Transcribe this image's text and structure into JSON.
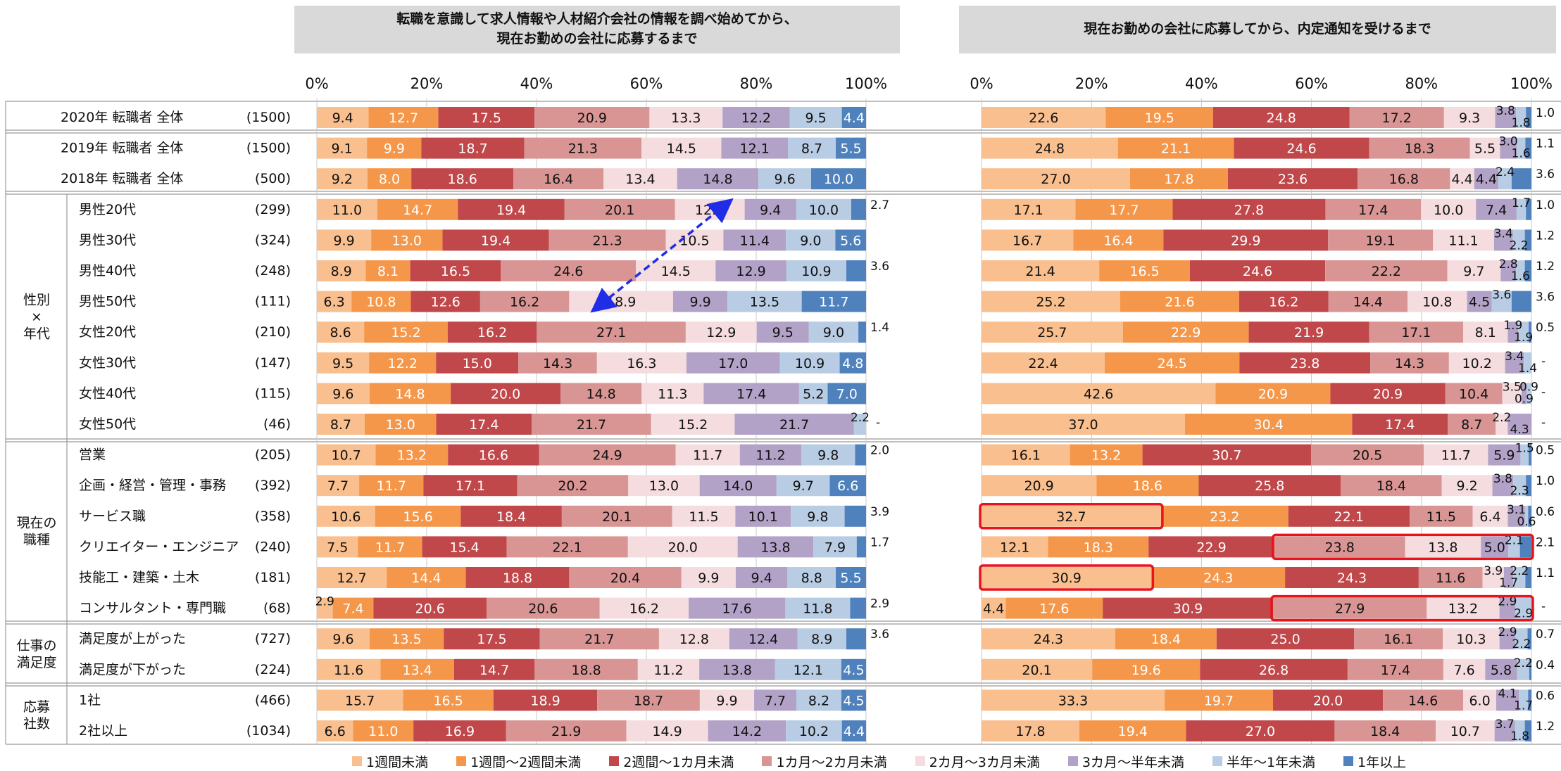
{
  "headers": {
    "left": "転職を意識して求人情報や人材紹介会社の情報を調べ始めてから、\n現在お勤めの会社に応募するまで",
    "right": "現在お勤めの会社に応募してから、内定通知を受けるまで"
  },
  "legend": [
    {
      "label": "1週間未満",
      "color": "#f9bf8f"
    },
    {
      "label": "1週間～2週間未満",
      "color": "#f5974a"
    },
    {
      "label": "2週間～1カ月未満",
      "color": "#c0474a"
    },
    {
      "label": "1カ月～2カ月未満",
      "color": "#d99594"
    },
    {
      "label": "2カ月～3カ月未満",
      "color": "#f5dcdf"
    },
    {
      "label": "3カ月～半年未満",
      "color": "#b2a2c7"
    },
    {
      "label": "半年～1年未満",
      "color": "#b8cce4"
    },
    {
      "label": "1年以上",
      "color": "#4f81bd"
    }
  ],
  "chart_data": [
    {
      "type": "bar",
      "stacked": "100%",
      "orientation": "horizontal",
      "title": "転職を意識して求人情報や人材紹介会社の情報を調べ始めてから、現在お勤めの会社に応募するまで",
      "xlim": [
        0,
        100
      ],
      "x_ticks": [
        "0%",
        "20%",
        "40%",
        "60%",
        "80%",
        "100%"
      ],
      "categories": [
        "2020年 転職者 全体",
        "2019年 転職者 全体",
        "2018年 転職者 全体",
        "男性20代",
        "男性30代",
        "男性40代",
        "男性50代",
        "女性20代",
        "女性30代",
        "女性40代",
        "女性50代",
        "営業",
        "企画・経営・管理・事務",
        "サービス職",
        "クリエイター・エンジニア",
        "技能工・建築・土木",
        "コンサルタント・専門職",
        "満足度が上がった",
        "満足度が下がった",
        "1社",
        "2社以上"
      ],
      "series_names": [
        "1週間未満",
        "1週間～2週間未満",
        "2週間～1カ月未満",
        "1カ月～2カ月未満",
        "2カ月～3カ月未満",
        "3カ月～半年未満",
        "半年～1年未満",
        "1年以上"
      ],
      "values": [
        [
          9.4,
          12.7,
          17.5,
          20.9,
          13.3,
          12.2,
          9.5,
          4.4
        ],
        [
          9.1,
          9.9,
          18.7,
          21.3,
          14.5,
          12.1,
          8.7,
          5.5
        ],
        [
          9.2,
          8.0,
          18.6,
          16.4,
          13.4,
          14.8,
          9.6,
          10.0
        ],
        [
          11.0,
          14.7,
          19.4,
          20.1,
          12.7,
          9.4,
          10.0,
          2.7
        ],
        [
          9.9,
          13.0,
          19.4,
          21.3,
          10.5,
          11.4,
          9.0,
          5.6
        ],
        [
          8.9,
          8.1,
          16.5,
          24.6,
          14.5,
          12.9,
          10.9,
          3.6
        ],
        [
          6.3,
          10.8,
          12.6,
          16.2,
          18.9,
          9.9,
          13.5,
          11.7
        ],
        [
          8.6,
          15.2,
          16.2,
          27.1,
          12.9,
          9.5,
          9.0,
          1.4
        ],
        [
          9.5,
          12.2,
          15.0,
          14.3,
          16.3,
          17.0,
          10.9,
          4.8
        ],
        [
          9.6,
          14.8,
          20.0,
          14.8,
          11.3,
          17.4,
          5.2,
          7.0
        ],
        [
          8.7,
          13.0,
          17.4,
          21.7,
          15.2,
          21.7,
          2.2,
          0
        ],
        [
          10.7,
          13.2,
          16.6,
          24.9,
          11.7,
          11.2,
          9.8,
          2.0
        ],
        [
          7.7,
          11.7,
          17.1,
          20.2,
          13.0,
          14.0,
          9.7,
          6.6
        ],
        [
          10.6,
          15.6,
          18.4,
          20.1,
          11.5,
          10.1,
          9.8,
          3.9
        ],
        [
          7.5,
          11.7,
          15.4,
          22.1,
          20.0,
          13.8,
          7.9,
          1.7
        ],
        [
          12.7,
          14.4,
          18.8,
          20.4,
          9.9,
          9.4,
          8.8,
          5.5
        ],
        [
          2.9,
          7.4,
          20.6,
          20.6,
          16.2,
          17.6,
          11.8,
          2.9
        ],
        [
          9.6,
          13.5,
          17.5,
          21.7,
          12.8,
          12.4,
          8.9,
          3.6
        ],
        [
          11.6,
          13.4,
          14.7,
          18.8,
          11.2,
          13.8,
          12.1,
          4.5
        ],
        [
          15.7,
          16.5,
          18.9,
          18.7,
          9.9,
          7.7,
          8.2,
          4.5
        ],
        [
          6.6,
          11.0,
          16.9,
          21.9,
          14.9,
          14.2,
          10.2,
          4.4
        ]
      ]
    },
    {
      "type": "bar",
      "stacked": "100%",
      "orientation": "horizontal",
      "title": "現在お勤めの会社に応募してから、内定通知を受けるまで",
      "xlim": [
        0,
        100
      ],
      "x_ticks": [
        "0%",
        "20%",
        "40%",
        "60%",
        "80%",
        "100%"
      ],
      "categories": [
        "2020年 転職者 全体",
        "2019年 転職者 全体",
        "2018年 転職者 全体",
        "男性20代",
        "男性30代",
        "男性40代",
        "男性50代",
        "女性20代",
        "女性30代",
        "女性40代",
        "女性50代",
        "営業",
        "企画・経営・管理・事務",
        "サービス職",
        "クリエイター・エンジニア",
        "技能工・建築・土木",
        "コンサルタント・専門職",
        "満足度が上がった",
        "満足度が下がった",
        "1社",
        "2社以上"
      ],
      "series_names": [
        "1週間未満",
        "1週間～2週間未満",
        "2週間～1カ月未満",
        "1カ月～2カ月未満",
        "2カ月～3カ月未満",
        "3カ月～半年未満",
        "半年～1年未満",
        "1年以上"
      ],
      "values": [
        [
          22.6,
          19.5,
          24.8,
          17.2,
          9.3,
          3.8,
          1.8,
          1.0
        ],
        [
          24.8,
          21.1,
          24.6,
          18.3,
          5.5,
          3.0,
          1.6,
          1.1
        ],
        [
          27.0,
          17.8,
          23.6,
          16.8,
          4.4,
          4.4,
          2.4,
          3.6
        ],
        [
          17.1,
          17.7,
          27.8,
          17.4,
          10.0,
          7.4,
          1.7,
          1.0
        ],
        [
          16.7,
          16.4,
          29.9,
          19.1,
          11.1,
          3.4,
          2.2,
          1.2
        ],
        [
          21.4,
          16.5,
          24.6,
          22.2,
          9.7,
          2.8,
          1.6,
          1.2
        ],
        [
          25.2,
          21.6,
          16.2,
          14.4,
          10.8,
          4.5,
          3.6,
          3.6
        ],
        [
          25.7,
          22.9,
          21.9,
          17.1,
          8.1,
          1.9,
          1.9,
          0.5
        ],
        [
          22.4,
          24.5,
          23.8,
          14.3,
          10.2,
          3.4,
          1.4,
          0
        ],
        [
          42.6,
          20.9,
          20.9,
          10.4,
          3.5,
          0.9,
          0.9,
          0
        ],
        [
          37.0,
          30.4,
          17.4,
          8.7,
          2.2,
          4.3,
          0,
          0
        ],
        [
          16.1,
          13.2,
          30.7,
          20.5,
          11.7,
          5.9,
          1.5,
          0.5
        ],
        [
          20.9,
          18.6,
          25.8,
          18.4,
          9.2,
          3.8,
          2.3,
          1.0
        ],
        [
          32.7,
          23.2,
          22.1,
          11.5,
          6.4,
          3.1,
          0.6,
          0.6
        ],
        [
          12.1,
          18.3,
          22.9,
          23.8,
          13.8,
          5.0,
          2.1,
          2.1
        ],
        [
          30.9,
          24.3,
          24.3,
          11.6,
          3.9,
          1.7,
          2.2,
          1.1
        ],
        [
          4.4,
          17.6,
          30.9,
          27.9,
          13.2,
          2.9,
          2.9,
          0
        ],
        [
          24.3,
          18.4,
          25.0,
          16.1,
          10.3,
          2.9,
          2.2,
          0.7
        ],
        [
          20.1,
          19.6,
          26.8,
          17.4,
          7.6,
          5.8,
          2.2,
          0.4
        ],
        [
          33.3,
          19.7,
          20.0,
          14.6,
          6.0,
          4.1,
          1.7,
          0.6
        ],
        [
          17.8,
          19.4,
          27.0,
          18.4,
          10.7,
          3.7,
          1.8,
          1.2
        ]
      ]
    }
  ],
  "rows": [
    {
      "label": "2020年 転職者 全体",
      "n": "(1500)"
    },
    {
      "label": "2019年 転職者 全体",
      "n": "(1500)"
    },
    {
      "label": "2018年 転職者 全体",
      "n": "(500)"
    },
    {
      "label": "男性20代",
      "n": "(299)"
    },
    {
      "label": "男性30代",
      "n": "(324)"
    },
    {
      "label": "男性40代",
      "n": "(248)"
    },
    {
      "label": "男性50代",
      "n": "(111)"
    },
    {
      "label": "女性20代",
      "n": "(210)"
    },
    {
      "label": "女性30代",
      "n": "(147)"
    },
    {
      "label": "女性40代",
      "n": "(115)"
    },
    {
      "label": "女性50代",
      "n": "(46)"
    },
    {
      "label": "営業",
      "n": "(205)"
    },
    {
      "label": "企画・経営・管理・事務",
      "n": "(392)"
    },
    {
      "label": "サービス職",
      "n": "(358)"
    },
    {
      "label": "クリエイター・エンジニア",
      "n": "(240)"
    },
    {
      "label": "技能工・建築・土木",
      "n": "(181)"
    },
    {
      "label": "コンサルタント・専門職",
      "n": "(68)"
    },
    {
      "label": "満足度が上がった",
      "n": "(727)"
    },
    {
      "label": "満足度が下がった",
      "n": "(224)"
    },
    {
      "label": "1社",
      "n": "(466)"
    },
    {
      "label": "2社以上",
      "n": "(1034)"
    }
  ],
  "groups": [
    {
      "label": "性別\n×\n年代",
      "first": 3,
      "last": 10
    },
    {
      "label": "現在の\n職種",
      "first": 11,
      "last": 16
    },
    {
      "label": "仕事の\n満足度",
      "first": 17,
      "last": 18
    },
    {
      "label": "応募\n社数",
      "first": 19,
      "last": 20
    }
  ],
  "zero_marker": "-",
  "highlights": {
    "right": [
      {
        "row": 13,
        "from_segment": 0,
        "to_segment": 0
      },
      {
        "row": 14,
        "from_segment": 3,
        "to_segment": 7
      },
      {
        "row": 15,
        "from_segment": 0,
        "to_segment": 0
      },
      {
        "row": 16,
        "from_segment": 3,
        "to_segment": 7
      }
    ],
    "color": "#e8131b"
  },
  "annotation_arrow": {
    "chart": "left",
    "from_row": 6,
    "from_segment": 4,
    "to_row": 3,
    "to_segment": 4,
    "color": "#1f2de6"
  }
}
